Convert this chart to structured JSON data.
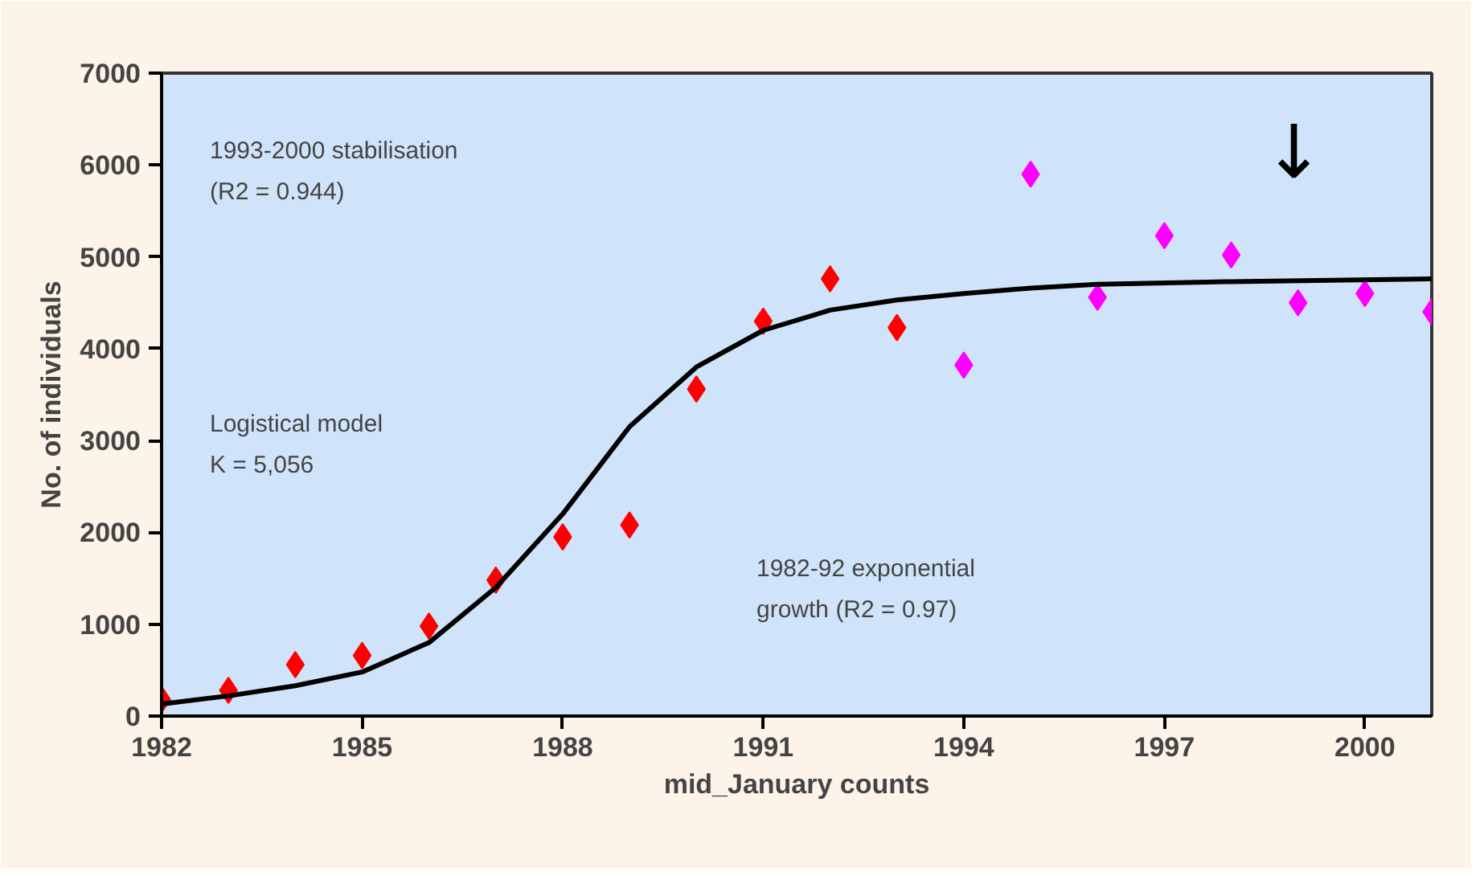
{
  "chart_data": {
    "type": "scatter",
    "xlabel": "mid_January counts",
    "ylabel": "No. of individuals",
    "xlim": [
      1982,
      2001
    ],
    "xticks": [
      1982,
      1985,
      1988,
      1991,
      1994,
      1997,
      2000
    ],
    "ylim": [
      0,
      7000
    ],
    "yticks": [
      0,
      1000,
      2000,
      3000,
      4000,
      5000,
      6000,
      7000
    ],
    "grid": false,
    "marker": "diamond",
    "series": [
      {
        "color": "#ff0000",
        "x": [
          1982,
          1983,
          1984,
          1985,
          1986,
          1987,
          1988,
          1989,
          1990,
          1991,
          1992,
          1993
        ],
        "values": [
          180,
          280,
          560,
          660,
          980,
          1480,
          1950,
          2080,
          3560,
          4300,
          4760,
          4230
        ]
      },
      {
        "color": "#ff00ff",
        "x": [
          1994,
          1995,
          1996,
          1997,
          1998,
          1999,
          2000,
          2001
        ],
        "values": [
          3820,
          5900,
          4560,
          5230,
          5020,
          4500,
          4600,
          4400
        ]
      },
      {
        "type": "line",
        "color": "#000000",
        "marker": "none",
        "x": [
          1982,
          1983,
          1984,
          1985,
          1986,
          1987,
          1988,
          1989,
          1990,
          1991,
          1992,
          1993,
          1994,
          1995,
          1996,
          1998,
          2001
        ],
        "values": [
          130,
          220,
          330,
          480,
          800,
          1400,
          2200,
          3150,
          3800,
          4200,
          4420,
          4530,
          4600,
          4660,
          4700,
          4730,
          4760
        ]
      }
    ],
    "annotations": [
      "1993-2000 stabilisation\n(R2 = 0.944)",
      "Logistical model\nK = 5,056",
      "1982-92 exponential\ngrowth (R2 = 0.97)",
      "↓"
    ]
  }
}
